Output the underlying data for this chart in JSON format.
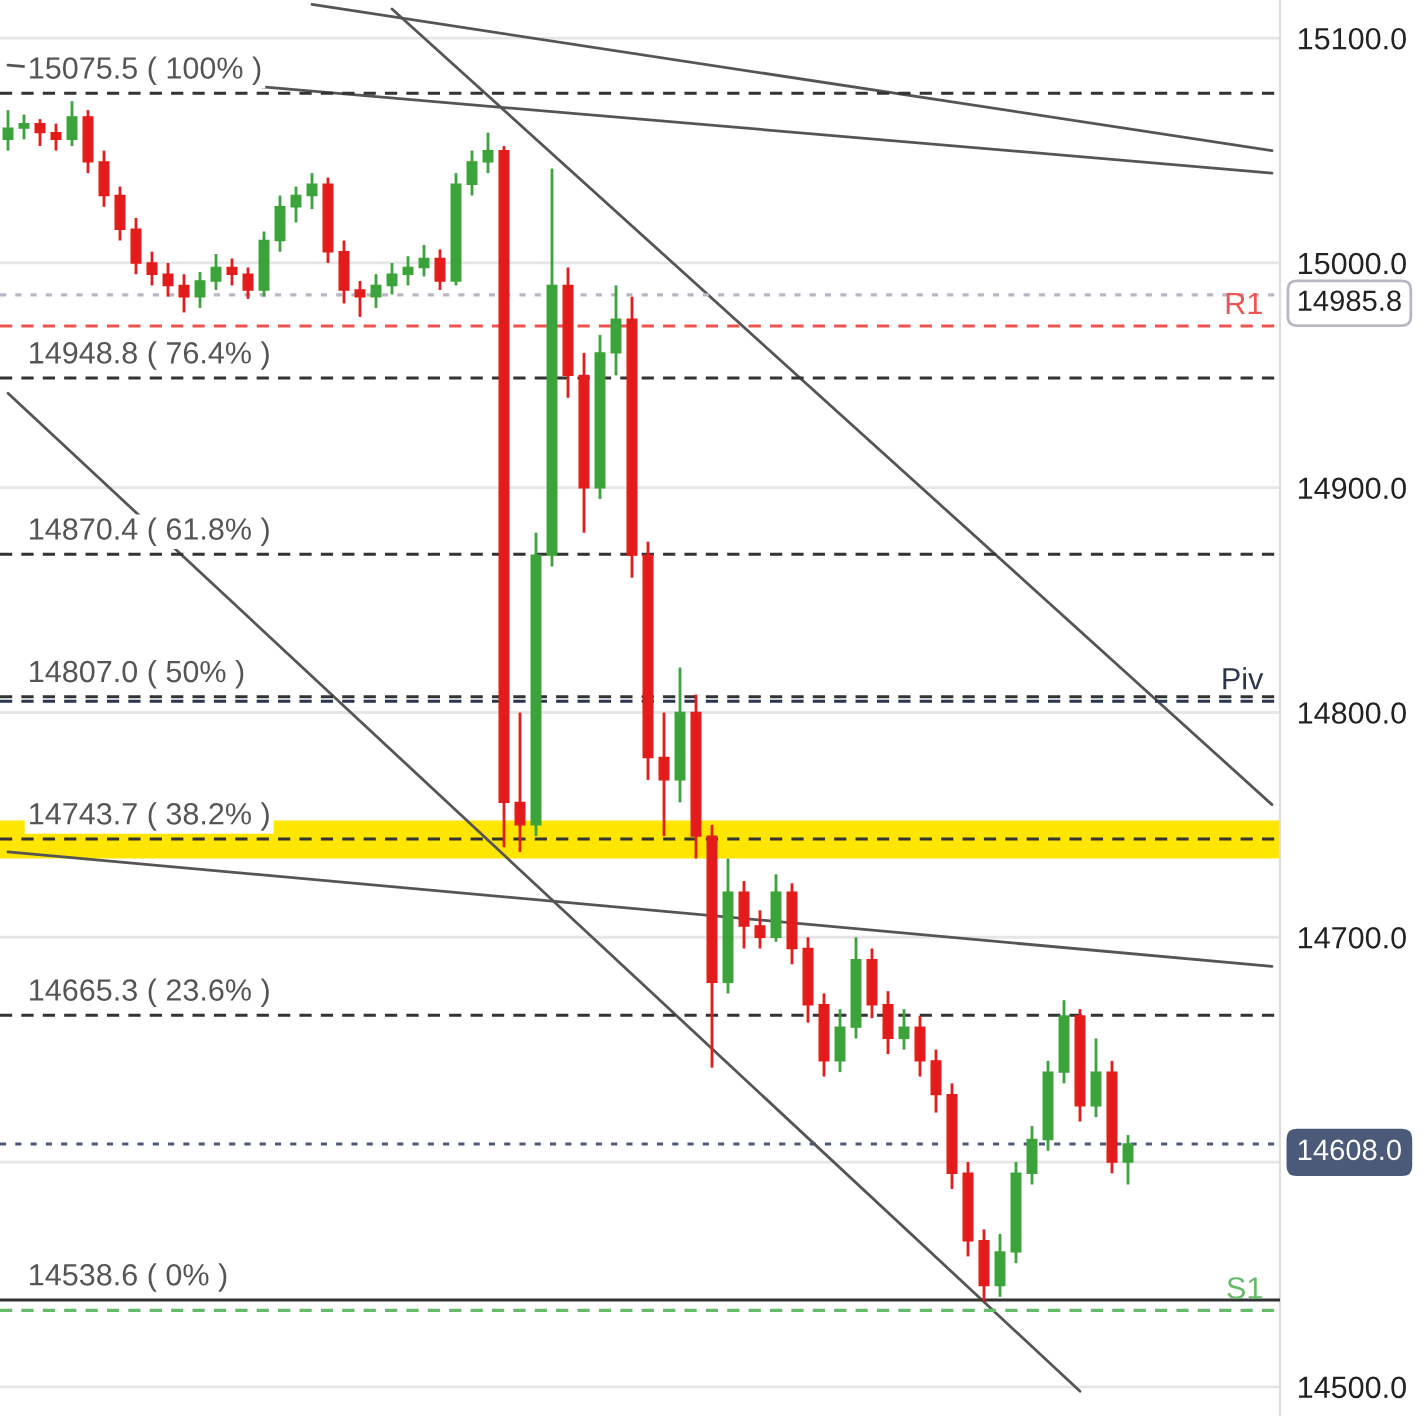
{
  "chart_data": {
    "type": "candlestick",
    "categories": [
      null,
      null,
      null,
      null,
      null,
      null,
      null,
      null,
      null,
      null,
      null,
      null,
      null,
      null,
      null,
      null,
      null,
      null,
      null,
      null,
      null,
      null,
      null,
      null,
      null,
      null,
      null,
      null,
      null,
      null,
      null,
      null,
      null,
      null,
      null,
      null,
      null,
      null,
      null,
      null,
      null,
      null,
      null,
      null,
      null,
      null,
      null,
      null,
      null,
      null,
      null,
      null,
      null,
      null,
      null,
      null,
      null,
      null,
      null,
      null,
      null,
      null,
      null,
      null,
      null,
      null,
      null,
      null,
      null,
      null,
      null,
      null,
      null,
      null,
      null,
      null,
      null,
      null,
      null,
      null
    ],
    "ohlc": [
      [
        15055,
        15068,
        15050,
        15060
      ],
      [
        15060,
        15066,
        15055,
        15062
      ],
      [
        15062,
        15064,
        15052,
        15058
      ],
      [
        15058,
        15062,
        15050,
        15055
      ],
      [
        15055,
        15072,
        15052,
        15065
      ],
      [
        15065,
        15068,
        15040,
        15045
      ],
      [
        15045,
        15050,
        15025,
        15030
      ],
      [
        15030,
        15034,
        15010,
        15015
      ],
      [
        15015,
        15020,
        14995,
        15000
      ],
      [
        15000,
        15005,
        14990,
        14995
      ],
      [
        14995,
        15000,
        14985,
        14990
      ],
      [
        14990,
        14995,
        14978,
        14985
      ],
      [
        14985,
        14996,
        14980,
        14992
      ],
      [
        14992,
        15004,
        14988,
        14998
      ],
      [
        14998,
        15002,
        14990,
        14995
      ],
      [
        14995,
        14998,
        14984,
        14988
      ],
      [
        14988,
        15014,
        14985,
        15010
      ],
      [
        15010,
        15030,
        15005,
        15025
      ],
      [
        15025,
        15034,
        15018,
        15030
      ],
      [
        15030,
        15040,
        15024,
        15035
      ],
      [
        15035,
        15038,
        15000,
        15005
      ],
      [
        15005,
        15010,
        14982,
        14988
      ],
      [
        14988,
        14992,
        14976,
        14985
      ],
      [
        14985,
        14995,
        14980,
        14990
      ],
      [
        14990,
        15000,
        14986,
        14995
      ],
      [
        14995,
        15003,
        14990,
        14998
      ],
      [
        14998,
        15008,
        14994,
        15002
      ],
      [
        15002,
        15006,
        14988,
        14992
      ],
      [
        14992,
        15040,
        14990,
        15035
      ],
      [
        15035,
        15050,
        15030,
        15045
      ],
      [
        15045,
        15058,
        15040,
        15050
      ],
      [
        15050,
        15052,
        14740,
        14760
      ],
      [
        14760,
        14800,
        14738,
        14750
      ],
      [
        14750,
        14880,
        14745,
        14870
      ],
      [
        14870,
        15042,
        14865,
        14990
      ],
      [
        14990,
        14998,
        14940,
        14950
      ],
      [
        14950,
        14960,
        14880,
        14900
      ],
      [
        14900,
        14968,
        14895,
        14960
      ],
      [
        14960,
        14990,
        14950,
        14975
      ],
      [
        14975,
        14985,
        14860,
        14870
      ],
      [
        14870,
        14876,
        14770,
        14780
      ],
      [
        14780,
        14800,
        14745,
        14770
      ],
      [
        14770,
        14820,
        14760,
        14800
      ],
      [
        14800,
        14808,
        14735,
        14745
      ],
      [
        14745,
        14750,
        14642,
        14680
      ],
      [
        14680,
        14735,
        14675,
        14720
      ],
      [
        14720,
        14725,
        14695,
        14705
      ],
      [
        14705,
        14712,
        14695,
        14700
      ],
      [
        14700,
        14728,
        14698,
        14720
      ],
      [
        14720,
        14724,
        14688,
        14695
      ],
      [
        14695,
        14700,
        14662,
        14670
      ],
      [
        14670,
        14675,
        14638,
        14645
      ],
      [
        14645,
        14668,
        14640,
        14660
      ],
      [
        14660,
        14700,
        14655,
        14690
      ],
      [
        14690,
        14695,
        14664,
        14670
      ],
      [
        14670,
        14676,
        14648,
        14655
      ],
      [
        14655,
        14668,
        14650,
        14660
      ],
      [
        14660,
        14665,
        14638,
        14645
      ],
      [
        14645,
        14650,
        14622,
        14630
      ],
      [
        14630,
        14635,
        14588,
        14595
      ],
      [
        14595,
        14600,
        14558,
        14565
      ],
      [
        14565,
        14570,
        14538,
        14545
      ],
      [
        14545,
        14568,
        14540,
        14560
      ],
      [
        14560,
        14600,
        14555,
        14595
      ],
      [
        14595,
        14616,
        14590,
        14610
      ],
      [
        14610,
        14645,
        14605,
        14640
      ],
      [
        14640,
        14672,
        14635,
        14665
      ],
      [
        14665,
        14668,
        14618,
        14625
      ],
      [
        14625,
        14655,
        14620,
        14640
      ],
      [
        14640,
        14645,
        14595,
        14600
      ],
      [
        14600,
        14612,
        14590,
        14608
      ],
      null,
      null,
      null,
      null,
      null,
      null,
      null,
      null,
      null
    ],
    "colors": [
      "#3aa33a",
      "#3aa33a",
      "#e31b1b",
      "#e31b1b",
      "#3aa33a",
      "#e31b1b",
      "#e31b1b",
      "#e31b1b",
      "#e31b1b",
      "#e31b1b",
      "#e31b1b",
      "#e31b1b",
      "#3aa33a",
      "#3aa33a",
      "#e31b1b",
      "#e31b1b",
      "#3aa33a",
      "#3aa33a",
      "#3aa33a",
      "#3aa33a",
      "#e31b1b",
      "#e31b1b",
      "#e31b1b",
      "#3aa33a",
      "#3aa33a",
      "#3aa33a",
      "#3aa33a",
      "#e31b1b",
      "#3aa33a",
      "#3aa33a",
      "#3aa33a",
      "#e31b1b",
      "#e31b1b",
      "#3aa33a",
      "#3aa33a",
      "#e31b1b",
      "#e31b1b",
      "#3aa33a",
      "#3aa33a",
      "#e31b1b",
      "#e31b1b",
      "#e31b1b",
      "#3aa33a",
      "#e31b1b",
      "#e31b1b",
      "#3aa33a",
      "#e31b1b",
      "#e31b1b",
      "#3aa33a",
      "#e31b1b",
      "#e31b1b",
      "#e31b1b",
      "#3aa33a",
      "#3aa33a",
      "#e31b1b",
      "#e31b1b",
      "#3aa33a",
      "#e31b1b",
      "#e31b1b",
      "#e31b1b",
      "#e31b1b",
      "#e31b1b",
      "#3aa33a",
      "#3aa33a",
      "#3aa33a",
      "#3aa33a",
      "#3aa33a",
      "#e31b1b",
      "#3aa33a",
      "#e31b1b",
      "#3aa33a",
      null,
      null,
      null,
      null,
      null,
      null,
      null,
      null,
      null
    ],
    "series": [
      {
        "type": "line",
        "color": "#555555",
        "values": [
          15088,
          null,
          null,
          null,
          null,
          null,
          null,
          null,
          null,
          null,
          null,
          null,
          null,
          null,
          null,
          null,
          null,
          null,
          null,
          null,
          null,
          null,
          null,
          null,
          null,
          null,
          null,
          null,
          null,
          null,
          null,
          null,
          null,
          null,
          null,
          null,
          null,
          null,
          null,
          null,
          null,
          null,
          null,
          null,
          null,
          null,
          null,
          null,
          null,
          null,
          null,
          null,
          null,
          null,
          null,
          null,
          null,
          null,
          null,
          null,
          null,
          null,
          null,
          null,
          null,
          null,
          null,
          null,
          null,
          null,
          null,
          null,
          null,
          null,
          null,
          null,
          null,
          null,
          null,
          15040
        ]
      },
      {
        "type": "line",
        "color": "#555555",
        "values": [
          null,
          null,
          null,
          null,
          null,
          null,
          null,
          null,
          null,
          null,
          null,
          null,
          null,
          null,
          null,
          null,
          null,
          null,
          null,
          15115,
          null,
          null,
          null,
          null,
          null,
          null,
          null,
          null,
          null,
          null,
          null,
          null,
          null,
          null,
          null,
          null,
          null,
          null,
          null,
          null,
          null,
          null,
          null,
          null,
          null,
          null,
          null,
          null,
          null,
          null,
          null,
          null,
          null,
          null,
          null,
          null,
          null,
          null,
          null,
          null,
          null,
          null,
          null,
          null,
          null,
          null,
          null,
          null,
          null,
          null,
          null,
          null,
          null,
          null,
          null,
          null,
          null,
          null,
          null,
          15050
        ]
      },
      {
        "type": "line",
        "color": "#555555",
        "values": [
          null,
          null,
          null,
          null,
          null,
          null,
          null,
          null,
          null,
          null,
          null,
          null,
          null,
          null,
          null,
          null,
          null,
          null,
          null,
          null,
          null,
          null,
          null,
          null,
          15113,
          null,
          null,
          null,
          null,
          null,
          null,
          null,
          null,
          null,
          null,
          null,
          null,
          null,
          null,
          null,
          null,
          null,
          null,
          null,
          null,
          null,
          null,
          null,
          null,
          null,
          null,
          null,
          null,
          null,
          null,
          null,
          null,
          null,
          null,
          null,
          null,
          null,
          null,
          null,
          null,
          null,
          null,
          null,
          null,
          null,
          null,
          null,
          null,
          null,
          null,
          null,
          null,
          null,
          null,
          14759
        ]
      },
      {
        "type": "line",
        "color": "#555555",
        "values": [
          14942,
          null,
          null,
          null,
          null,
          null,
          null,
          null,
          null,
          null,
          null,
          null,
          null,
          null,
          null,
          null,
          null,
          null,
          null,
          null,
          null,
          null,
          null,
          null,
          null,
          null,
          null,
          null,
          null,
          null,
          null,
          null,
          null,
          null,
          null,
          null,
          null,
          null,
          null,
          null,
          null,
          null,
          null,
          null,
          null,
          null,
          null,
          null,
          null,
          null,
          null,
          null,
          null,
          null,
          null,
          null,
          null,
          null,
          null,
          null,
          null,
          null,
          null,
          null,
          null,
          null,
          null,
          14498,
          null,
          null,
          null,
          null,
          null,
          null,
          null,
          null,
          null,
          null,
          null,
          null
        ]
      },
      {
        "type": "line",
        "color": "#555555",
        "values": [
          14738,
          null,
          null,
          null,
          null,
          null,
          null,
          null,
          null,
          null,
          null,
          null,
          null,
          null,
          null,
          null,
          null,
          null,
          null,
          null,
          null,
          null,
          null,
          null,
          null,
          null,
          null,
          null,
          null,
          null,
          null,
          null,
          null,
          null,
          null,
          null,
          null,
          null,
          null,
          null,
          null,
          null,
          null,
          null,
          null,
          null,
          null,
          null,
          null,
          null,
          null,
          null,
          null,
          null,
          null,
          null,
          null,
          null,
          null,
          null,
          null,
          null,
          null,
          null,
          null,
          null,
          null,
          null,
          null,
          null,
          null,
          null,
          null,
          null,
          null,
          null,
          null,
          null,
          null,
          14687
        ]
      }
    ],
    "ylim": [
      14487,
      15117
    ],
    "yticks": [
      {
        "value": 14500,
        "label": "14500.0"
      },
      {
        "value": 14600,
        "label": null
      },
      {
        "value": 14700,
        "label": "14700.0"
      },
      {
        "value": 14800,
        "label": "14800.0"
      },
      {
        "value": 14900,
        "label": "14900.0"
      },
      {
        "value": 15000,
        "label": "15000.0"
      },
      {
        "value": 15100,
        "label": "15100.0"
      }
    ],
    "grid": "y",
    "bands": [
      {
        "axis": "y",
        "from": 14735,
        "to": 14752,
        "color": "#ffe600"
      }
    ],
    "ref_lines": [
      {
        "axis": "y",
        "value": 15075.5,
        "label": "15075.5 ( 100% )",
        "color": "#333333",
        "line_style": "dashed"
      },
      {
        "axis": "y",
        "value": 14948.8,
        "label": "14948.8 ( 76.4% )",
        "color": "#333333",
        "line_style": "dashed"
      },
      {
        "axis": "y",
        "value": 14870.4,
        "label": "14870.4 ( 61.8% )",
        "color": "#333333",
        "line_style": "dashed"
      },
      {
        "axis": "y",
        "value": 14807.0,
        "label": "14807.0 ( 50% )",
        "color": "#333333",
        "line_style": "dashed"
      },
      {
        "axis": "y",
        "value": 14743.7,
        "label": "14743.7 ( 38.2% )",
        "color": "#333333",
        "line_style": "dashed"
      },
      {
        "axis": "y",
        "value": 14665.3,
        "label": "14665.3 ( 23.6% )",
        "color": "#333333",
        "line_style": "dashed"
      },
      {
        "axis": "y",
        "value": 14538.6,
        "label": "14538.6 ( 0% )",
        "color": "#333333",
        "line_style": "solid"
      },
      {
        "axis": "y",
        "value": 14972,
        "label": "R1",
        "color": "#ef5350",
        "line_style": "dashed"
      },
      {
        "axis": "y",
        "value": 14805,
        "label": "Piv",
        "color": "#2a3550",
        "line_style": "dashed"
      },
      {
        "axis": "y",
        "value": 14534,
        "label": "S1",
        "color": "#66bb6a",
        "line_style": "dashed"
      },
      {
        "axis": "y",
        "value": 14985.8,
        "label": "14985.8",
        "color": "#b8b8c4",
        "line_style": "dotted"
      },
      {
        "axis": "y",
        "value": 14608.0,
        "label": "14608.0",
        "color": "#4a5a78",
        "line_style": "dotted"
      }
    ]
  }
}
